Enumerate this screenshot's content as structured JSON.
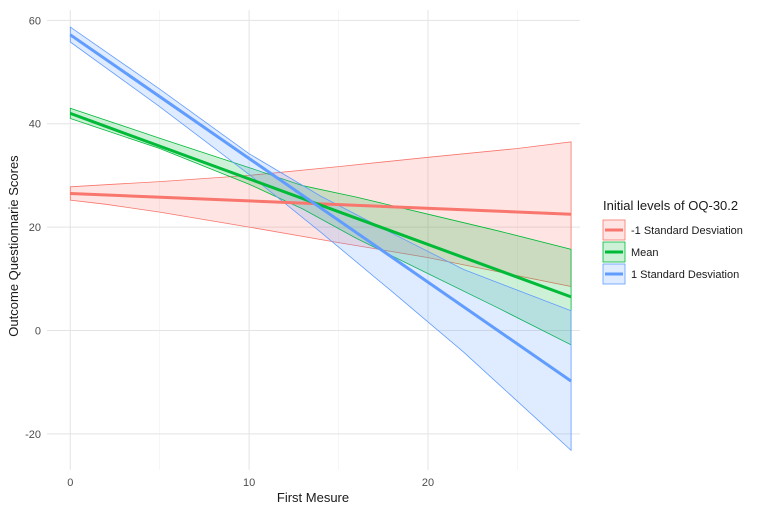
{
  "chart_data": {
    "type": "line",
    "xlabel": "First Mesure",
    "ylabel": "Outcome Questionnarie Scores",
    "xlim": [
      -1.3,
      28.5
    ],
    "ylim": [
      -27,
      62
    ],
    "x_ticks": [
      0,
      10,
      20
    ],
    "y_ticks": [
      -20,
      0,
      20,
      40,
      60
    ],
    "grid": true,
    "legend": {
      "title": "Initial levels of OQ-30.2",
      "position": "right"
    },
    "series": [
      {
        "name": "-1 Standard Desviation",
        "color": "#F8766D",
        "x": [
          0,
          28
        ],
        "y": [
          26.5,
          22.5
        ],
        "ci_x": [
          0,
          2,
          5,
          10,
          15,
          20,
          25,
          28
        ],
        "ci_lower": [
          25.2,
          24.4,
          22.9,
          20.0,
          17.0,
          14.1,
          10.6,
          8.5
        ],
        "ci_upper": [
          27.8,
          28.2,
          28.8,
          30.0,
          31.7,
          33.5,
          35.2,
          36.5
        ]
      },
      {
        "name": "Mean",
        "color": "#00BA38",
        "x": [
          0,
          28
        ],
        "y": [
          42,
          6.5
        ],
        "ci_x": [
          0,
          5,
          10,
          13,
          16,
          20,
          24,
          28
        ],
        "ci_lower": [
          41.0,
          35.2,
          28.3,
          23.5,
          17.8,
          11.0,
          4.2,
          -2.8
        ],
        "ci_upper": [
          43.0,
          37.2,
          31.5,
          28.0,
          25.8,
          22.5,
          19.2,
          15.7
        ]
      },
      {
        "name": "1 Standard Desviation",
        "color": "#619CFF",
        "x": [
          0,
          28
        ],
        "y": [
          57.2,
          -9.8
        ],
        "ci_x": [
          0,
          5,
          10,
          14,
          18,
          22,
          28
        ],
        "ci_lower": [
          55.8,
          43.3,
          30.2,
          19.0,
          7.5,
          -4.2,
          -23.2
        ],
        "ci_upper": [
          58.7,
          46.7,
          34.2,
          26.0,
          18.8,
          11.8,
          3.8
        ]
      }
    ]
  }
}
